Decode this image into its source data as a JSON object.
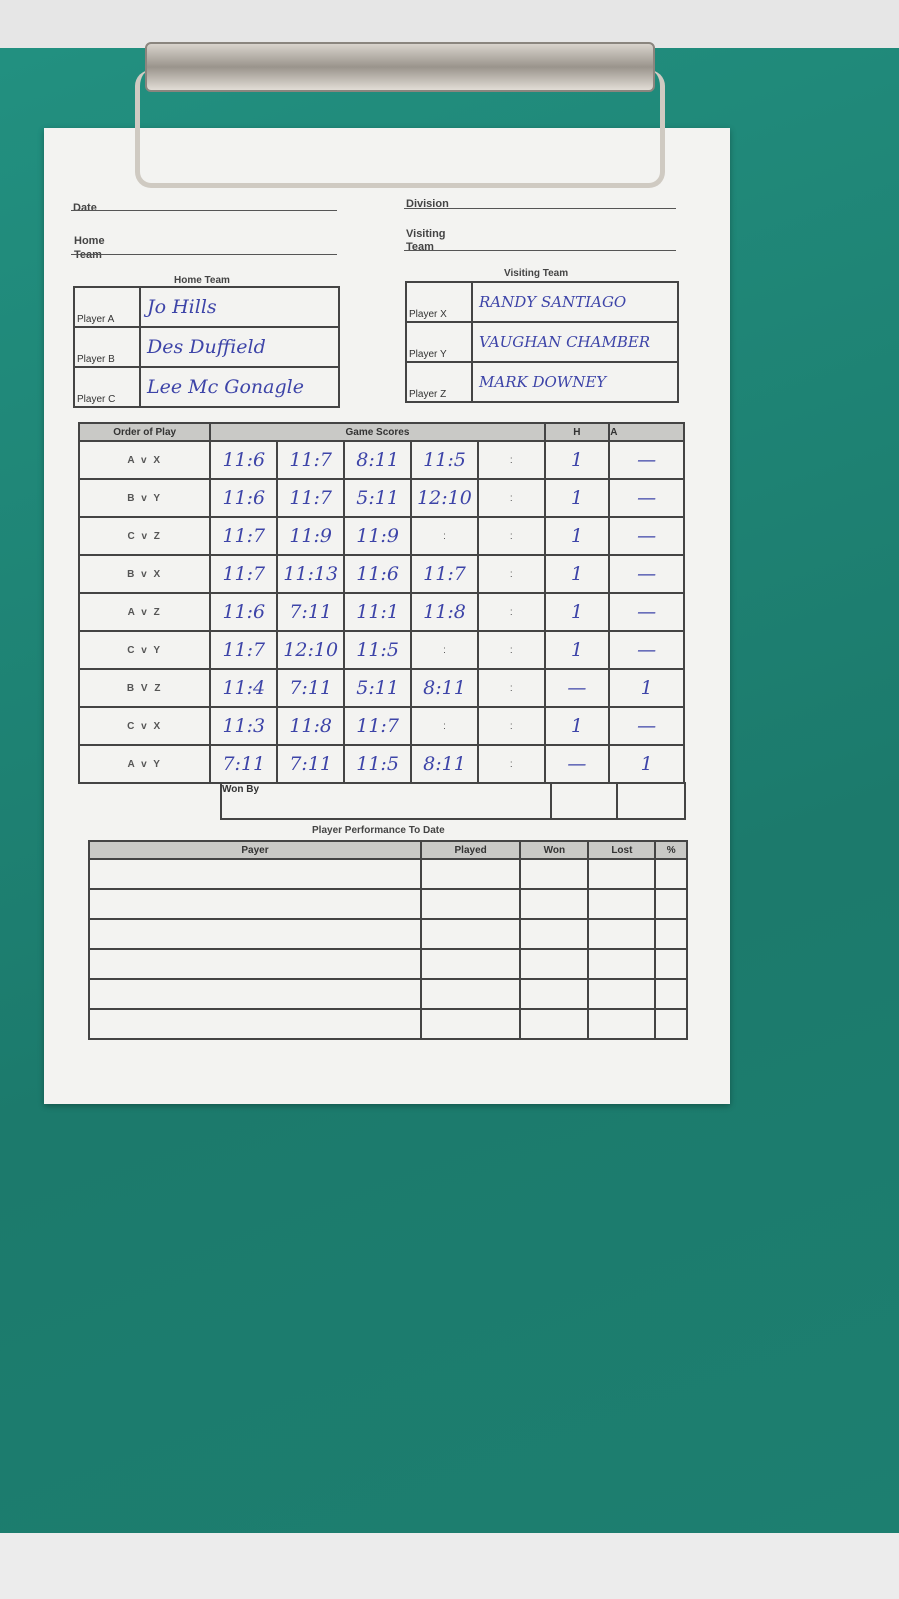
{
  "form": {
    "date_label": "Date",
    "division_label": "Division",
    "home_team_label": "Home Team",
    "visiting_team_label": "Visiting Team",
    "home_heading": "Home Team",
    "visiting_heading": "Visiting Team"
  },
  "home_players": [
    {
      "label": "Player A",
      "name": "Jo Hills"
    },
    {
      "label": "Player B",
      "name": "Des Duffield"
    },
    {
      "label": "Player C",
      "name": "Lee Mc Gonagle"
    }
  ],
  "visiting_players": [
    {
      "label": "Player X",
      "name": "RANDY SANTIAGO"
    },
    {
      "label": "Player Y",
      "name": "VAUGHAN CHAMBER"
    },
    {
      "label": "Player Z",
      "name": "MARK DOWNEY"
    }
  ],
  "order_table": {
    "headers": {
      "order": "Order of Play",
      "scores": "Game Scores",
      "h": "H",
      "a": "A"
    },
    "rows": [
      {
        "match": "A v X",
        "games": [
          "11:6",
          "11:7",
          "8:11",
          "11:5",
          ":"
        ],
        "h": "1",
        "a": "—"
      },
      {
        "match": "B v Y",
        "games": [
          "11:6",
          "11:7",
          "5:11",
          "12:10",
          ":"
        ],
        "h": "1",
        "a": "—"
      },
      {
        "match": "C v Z",
        "games": [
          "11:7",
          "11:9",
          "11:9",
          ":",
          ":"
        ],
        "h": "1",
        "a": "—"
      },
      {
        "match": "B v X",
        "games": [
          "11:7",
          "11:13",
          "11:6",
          "11:7",
          ":"
        ],
        "h": "1",
        "a": "—"
      },
      {
        "match": "A v Z",
        "games": [
          "11:6",
          "7:11",
          "11:1",
          "11:8",
          ":"
        ],
        "h": "1",
        "a": "—"
      },
      {
        "match": "C v Y",
        "games": [
          "11:7",
          "12:10",
          "11:5",
          ":",
          ":"
        ],
        "h": "1",
        "a": "—"
      },
      {
        "match": "B V Z",
        "games": [
          "11:4",
          "7:11",
          "5:11",
          "8:11",
          ":"
        ],
        "h": "—",
        "a": "1"
      },
      {
        "match": "C v X",
        "games": [
          "11:3",
          "11:8",
          "11:7",
          ":",
          ":"
        ],
        "h": "1",
        "a": "—"
      },
      {
        "match": "A v Y",
        "games": [
          "7:11",
          "7:11",
          "11:5",
          "8:11",
          ":"
        ],
        "h": "—",
        "a": "1"
      }
    ],
    "won_by_label": "Won By"
  },
  "performance": {
    "title": "Player Performance To Date",
    "headers": [
      "Payer",
      "Played",
      "Won",
      "Lost",
      "%"
    ]
  }
}
